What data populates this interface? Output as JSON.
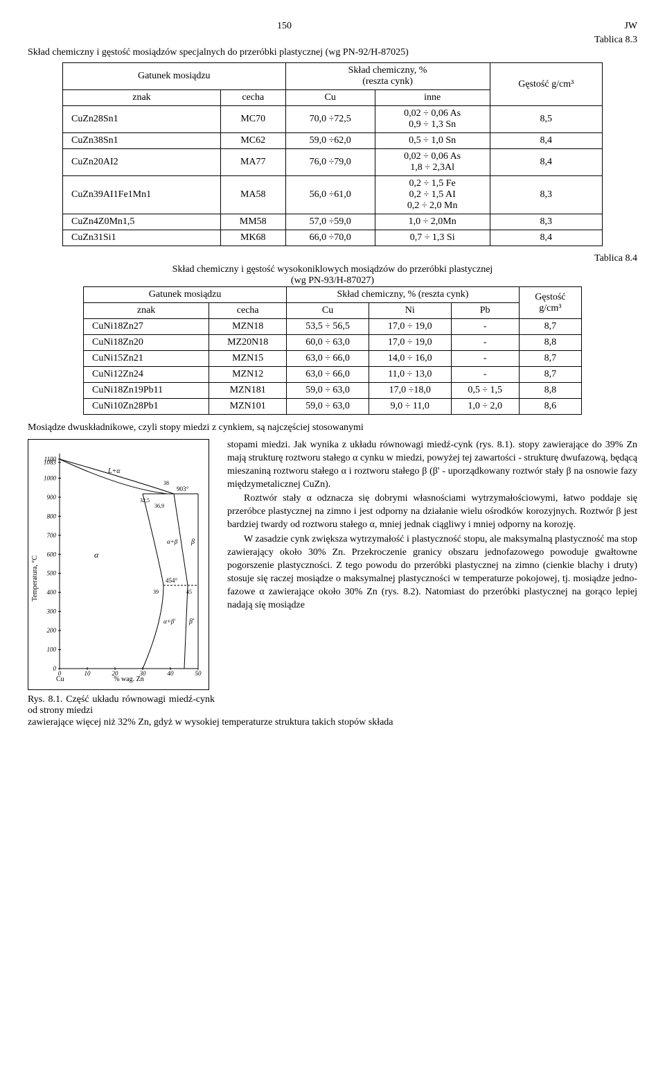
{
  "page_number": "150",
  "page_code": "JW",
  "table1": {
    "caption_label": "Tablica 8.3",
    "title": "Skład chemiczny i gęstość mosiądzów specjalnych do przeróbki plastycznej (wg PN-92/H-87025)",
    "header_group1": "Gatunek mosiądzu",
    "header_group2_line1": "Skład chemiczny, %",
    "header_group2_line2": "(reszta cynk)",
    "header_density": "Gęstość g/cm³",
    "col_znak": "znak",
    "col_cecha": "cecha",
    "col_cu": "Cu",
    "col_inne": "inne",
    "rows": [
      {
        "znak": "CuZn28Sn1",
        "cecha": "MC70",
        "cu": "70,0 ÷72,5",
        "inne": "0,02 ÷ 0,06 As\n0,9 ÷ 1,3 Sn",
        "density": "8,5"
      },
      {
        "znak": "CuZn38Sn1",
        "cecha": "MC62",
        "cu": "59,0 ÷62,0",
        "inne": "0,5 ÷ 1,0 Sn",
        "density": "8,4"
      },
      {
        "znak": "CuZn20AI2",
        "cecha": "MA77",
        "cu": "76,0 ÷79,0",
        "inne": "0,02 ÷ 0,06 As\n1,8 ÷ 2,3Al",
        "density": "8,4"
      },
      {
        "znak": "CuZn39AI1Fe1Mn1",
        "cecha": "MA58",
        "cu": "56,0 ÷61,0",
        "inne": "0,2 ÷ 1,5 Fe\n0,2 ÷ 1,5 AI\n0,2 ÷ 2,0 Mn",
        "density": "8,3"
      },
      {
        "znak": "CuZn4Z0Mn1,5",
        "cecha": "MM58",
        "cu": "57,0 ÷59,0",
        "inne": "1,0 ÷ 2,0Mn",
        "density": "8,3"
      },
      {
        "znak": "CuZn31Si1",
        "cecha": "MK68",
        "cu": "66,0 ÷70,0",
        "inne": "0,7 ÷ 1,3 Si",
        "density": "8,4"
      }
    ]
  },
  "table2": {
    "caption_label": "Tablica 8.4",
    "title_line1": "Skład chemiczny i gęstość wysokoniklowych mosiądzów do przeróbki plastycznej",
    "title_line2": "(wg PN-93/H-87027)",
    "header_group1": "Gatunek mosiądzu",
    "header_group2": "Skład chemiczny, % (reszta cynk)",
    "header_density_line1": "Gęstość",
    "header_density_line2": "g/cm³",
    "col_znak": "znak",
    "col_cecha": "cecha",
    "col_cu": "Cu",
    "col_ni": "Ni",
    "col_pb": "Pb",
    "rows": [
      {
        "znak": "CuNi18Zn27",
        "cecha": "MZN18",
        "cu": "53,5 ÷ 56,5",
        "ni": "17,0 ÷ 19,0",
        "pb": "-",
        "density": "8,7"
      },
      {
        "znak": "CuNi18Zn20",
        "cecha": "MZ20N18",
        "cu": "60,0 ÷ 63,0",
        "ni": "17,0 ÷ 19,0",
        "pb": "-",
        "density": "8,8"
      },
      {
        "znak": "CuNi15Zn21",
        "cecha": "MZN15",
        "cu": "63,0 ÷ 66,0",
        "ni": "14,0 ÷ 16,0",
        "pb": "-",
        "density": "8,7"
      },
      {
        "znak": "CuNi12Zn24",
        "cecha": "MZN12",
        "cu": "63,0 ÷ 66,0",
        "ni": "11,0 ÷ 13,0",
        "pb": "-",
        "density": "8,7"
      },
      {
        "znak": "CuNi18Zn19Pb11",
        "cecha": "MZN181",
        "cu": "59,0 ÷ 63,0",
        "ni": "17,0 ÷18,0",
        "pb": "0,5 ÷ 1,5",
        "density": "8,8"
      },
      {
        "znak": "CuNi10Zn28Pb1",
        "cecha": "MZN101",
        "cu": "59,0 ÷ 63,0",
        "ni": "9,0 ÷ 11,0",
        "pb": "1,0 ÷ 2,0",
        "density": "8,6"
      }
    ]
  },
  "body": {
    "intro": "Mosiądze dwuskładnikowe, czyli stopy miedzi z cynkiem, są najczęściej stosowanymi",
    "p1": "stopami miedzi. Jak wynika z układu równowagi miedź-cynk (rys. 8.1). stopy zawierające do 39% Zn mają strukturę roztworu stałego α cynku w miedzi, powyżej tej zawartości - strukturę dwufazową, będącą mieszaniną roztworu stałego α i roztworu stałego β (β' - uporządkowany roztwór stały β na osnowie fazy międzymetalicznej CuZn).",
    "p2": "Roztwór stały α odznacza się dobrymi własnościami wytrzymałościowymi, łatwo poddaje się przeróbce plastycznej na zimno i jest odporny na działanie wielu ośrodków korozyjnych. Roztwór β jest bardziej twardy od roztworu stałego α, mniej jednak ciągliwy i mniej odporny na korozję.",
    "p3": "W zasadzie cynk zwiększa wytrzymałość i plastyczność stopu, ale maksymalną plastyczność ma stop zawierający około 30% Zn. Przekroczenie granicy obszaru jednofazowego powoduje gwałtowne pogorszenie plastyczności. Z tego powodu do przeróbki plastycznej na zimno (cienkie blachy i druty) stosuje się raczej mosiądze o maksymalnej plastyczności w temperaturze pokojowej, tj. mosiądze jedno-fazowe α zawierające około 30% Zn (rys. 8.2). Natomiast do przeróbki plastycznej na gorąco lepiej nadają się mosiądze",
    "p_final": "zawierające więcej niż 32% Zn, gdyż w wysokiej temperaturze struktura takich stopów składa"
  },
  "figure": {
    "caption": "Rys. 8.1. Część układu równowagi miedź-cynk od strony miedzi",
    "y_axis_label": "Temperatura, °C",
    "x_axis_label": "% wag. Zn",
    "x_corner": "Cu",
    "y_ticks": [
      "1100",
      "1083",
      "1000",
      "900",
      "800",
      "700",
      "600",
      "500",
      "400",
      "300",
      "200",
      "100",
      "0"
    ],
    "x_ticks": [
      "0",
      "10",
      "20",
      "30",
      "40",
      "50"
    ],
    "region_labels": {
      "L_plus_alpha": "L+α",
      "alpha": "α",
      "alpha_plus_beta": "α+β",
      "beta": "β",
      "alpha_plus_beta_prime": "α+β'",
      "beta_prime": "β'"
    },
    "point_labels": {
      "t903": "903°",
      "t454": "454°",
      "x32_5": "32,5",
      "x36_9": "36,9",
      "x38": "38",
      "x39": "39",
      "x45": "45"
    }
  }
}
